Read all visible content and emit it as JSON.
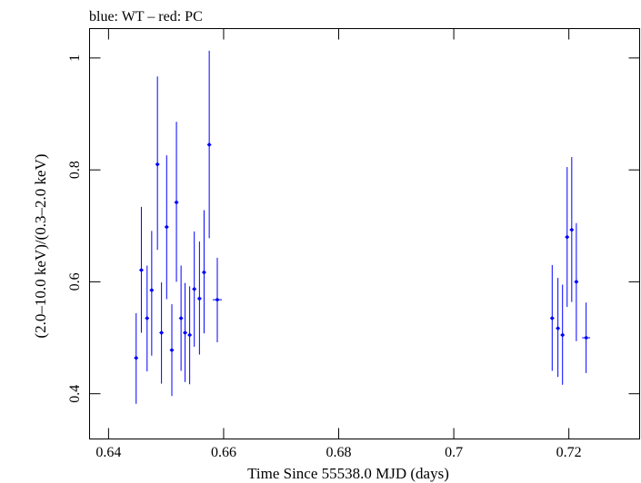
{
  "header": {
    "text": "blue: WT – red: PC"
  },
  "chart_data": {
    "type": "scatter",
    "title": "",
    "xlabel": "Time Since 55538.0 MJD (days)",
    "ylabel": "(2.0–10.0 keV)/(0.3–2.0 keV)",
    "xlim": [
      0.6367,
      0.7323
    ],
    "ylim": [
      0.3192,
      1.0525
    ],
    "xticks": [
      0.64,
      0.66,
      0.68,
      0.7,
      0.72
    ],
    "xtick_labels": [
      "0.64",
      "0.66",
      "0.68",
      "0.7",
      "0.72"
    ],
    "yticks": [
      0.4,
      0.6,
      0.8,
      1.0
    ],
    "ytick_labels": [
      "0.4",
      "0.6",
      "0.8",
      "1"
    ],
    "grid": false,
    "series": [
      {
        "color": "#0000ff",
        "points": [
          {
            "x": 0.6448,
            "xerr": 0.0003,
            "y": 0.464,
            "ylo": 0.382,
            "yhi": 0.544
          },
          {
            "x": 0.6457,
            "xerr": 0.0003,
            "y": 0.621,
            "ylo": 0.509,
            "yhi": 0.734
          },
          {
            "x": 0.6467,
            "xerr": 0.0003,
            "y": 0.535,
            "ylo": 0.44,
            "yhi": 0.629
          },
          {
            "x": 0.6475,
            "xerr": 0.0003,
            "y": 0.585,
            "ylo": 0.468,
            "yhi": 0.691
          },
          {
            "x": 0.6485,
            "xerr": 0.0003,
            "y": 0.81,
            "ylo": 0.657,
            "yhi": 0.967
          },
          {
            "x": 0.6492,
            "xerr": 0.0003,
            "y": 0.509,
            "ylo": 0.418,
            "yhi": 0.599
          },
          {
            "x": 0.6501,
            "xerr": 0.0003,
            "y": 0.698,
            "ylo": 0.569,
            "yhi": 0.826
          },
          {
            "x": 0.651,
            "xerr": 0.0003,
            "y": 0.478,
            "ylo": 0.396,
            "yhi": 0.56
          },
          {
            "x": 0.6518,
            "xerr": 0.0003,
            "y": 0.742,
            "ylo": 0.6,
            "yhi": 0.886
          },
          {
            "x": 0.6526,
            "xerr": 0.0003,
            "y": 0.535,
            "ylo": 0.441,
            "yhi": 0.629
          },
          {
            "x": 0.6533,
            "xerr": 0.0003,
            "y": 0.509,
            "ylo": 0.421,
            "yhi": 0.598
          },
          {
            "x": 0.6541,
            "xerr": 0.0003,
            "y": 0.505,
            "ylo": 0.417,
            "yhi": 0.592
          },
          {
            "x": 0.6549,
            "xerr": 0.0003,
            "y": 0.587,
            "ylo": 0.484,
            "yhi": 0.69
          },
          {
            "x": 0.6558,
            "xerr": 0.0003,
            "y": 0.57,
            "ylo": 0.47,
            "yhi": 0.672
          },
          {
            "x": 0.6566,
            "xerr": 0.0003,
            "y": 0.617,
            "ylo": 0.508,
            "yhi": 0.728
          },
          {
            "x": 0.6575,
            "xerr": 0.0003,
            "y": 0.845,
            "ylo": 0.678,
            "yhi": 1.013
          },
          {
            "x": 0.6589,
            "xerr": 0.0008,
            "y": 0.568,
            "ylo": 0.492,
            "yhi": 0.643
          },
          {
            "x": 0.7171,
            "xerr": 0.0003,
            "y": 0.535,
            "ylo": 0.441,
            "yhi": 0.63
          },
          {
            "x": 0.7181,
            "xerr": 0.0003,
            "y": 0.517,
            "ylo": 0.43,
            "yhi": 0.607
          },
          {
            "x": 0.7189,
            "xerr": 0.0003,
            "y": 0.505,
            "ylo": 0.416,
            "yhi": 0.595
          },
          {
            "x": 0.7197,
            "xerr": 0.0003,
            "y": 0.68,
            "ylo": 0.555,
            "yhi": 0.805
          },
          {
            "x": 0.7205,
            "xerr": 0.0003,
            "y": 0.693,
            "ylo": 0.564,
            "yhi": 0.823
          },
          {
            "x": 0.7213,
            "xerr": 0.0003,
            "y": 0.6,
            "ylo": 0.494,
            "yhi": 0.705
          },
          {
            "x": 0.723,
            "xerr": 0.0007,
            "y": 0.5,
            "ylo": 0.437,
            "yhi": 0.563
          }
        ]
      }
    ]
  }
}
